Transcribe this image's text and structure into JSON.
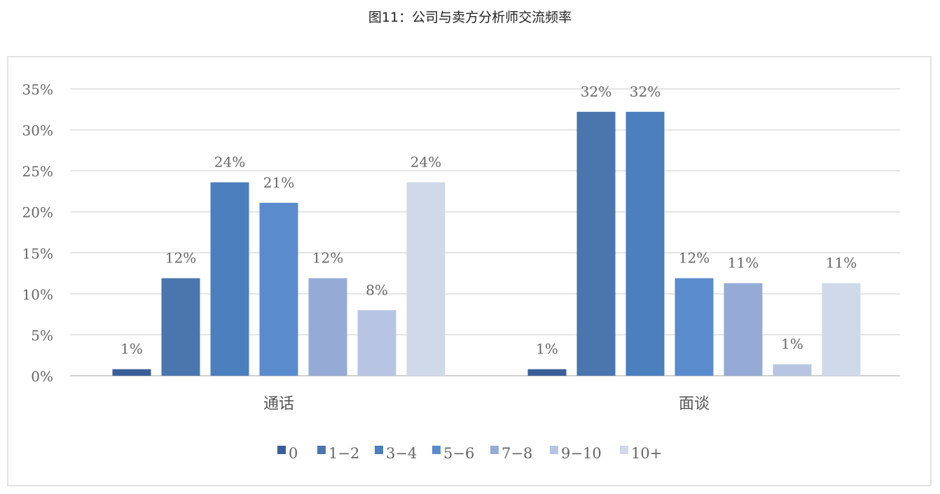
{
  "chart_data": {
    "type": "bar",
    "title": "图11：公司与卖方分析师交流频率",
    "categories": [
      "通话",
      "面谈"
    ],
    "series": [
      {
        "name": "0",
        "color": "#3a5f98",
        "values": [
          0.8,
          0.8
        ],
        "labels": [
          "1%",
          "1%"
        ]
      },
      {
        "name": "1-2",
        "color": "#4a76ad",
        "values": [
          11.9,
          32.2
        ],
        "labels": [
          "12%",
          "32%"
        ]
      },
      {
        "name": "3-4",
        "color": "#4b7fbe",
        "values": [
          23.6,
          32.2
        ],
        "labels": [
          "24%",
          "32%"
        ]
      },
      {
        "name": "5-6",
        "color": "#5a8bcc",
        "values": [
          21.1,
          11.9
        ],
        "labels": [
          "21%",
          "12%"
        ]
      },
      {
        "name": "7-8",
        "color": "#95abd6",
        "values": [
          11.9,
          11.3
        ],
        "labels": [
          "12%",
          "11%"
        ]
      },
      {
        "name": "9-10",
        "color": "#b7c5e3",
        "values": [
          8.0,
          1.4
        ],
        "labels": [
          "8%",
          "1%"
        ]
      },
      {
        "name": "10+",
        "color": "#d0d9ea",
        "values": [
          23.6,
          11.3
        ],
        "labels": [
          "24%",
          "11%"
        ]
      }
    ],
    "ylim": [
      0,
      35
    ],
    "yticks": [
      "0%",
      "5%",
      "10%",
      "15%",
      "20%",
      "25%",
      "30%",
      "35%"
    ],
    "grid": true,
    "legend": "bottom"
  }
}
